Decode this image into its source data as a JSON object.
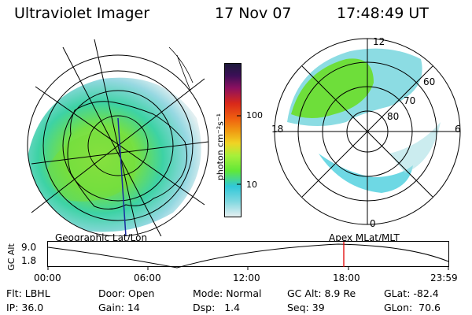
{
  "header": {
    "instrument": "Ultraviolet Imager",
    "date": "17 Nov 07",
    "time": "17:48:49 UT"
  },
  "colorbar": {
    "unit": "photon cm⁻²s⁻¹",
    "ticks": [
      "100",
      "10"
    ],
    "colors": [
      "#1b1a3a",
      "#3c0f57",
      "#6c0f7b",
      "#8b1060",
      "#b01030",
      "#d8281a",
      "#f06010",
      "#f09a12",
      "#f0d424",
      "#dff050",
      "#a8f03a",
      "#60e838",
      "#20d8a0",
      "#30c8d8",
      "#80d8e0",
      "#c8e6ea",
      "#e8f0f2"
    ]
  },
  "left_map": {
    "label": "Geographic Lat/Lon"
  },
  "right_map": {
    "label": "Apex MLat/MLT",
    "mlt_labels": [
      "12",
      "18",
      "6",
      "0"
    ],
    "mlat_labels": [
      "60",
      "70",
      "80"
    ]
  },
  "altitude_plot": {
    "ylabel": "GC Alt",
    "yticks": [
      "9.0",
      "1.8"
    ],
    "xticks": [
      "00:00",
      "06:00",
      "12:00",
      "18:00",
      "23:59"
    ],
    "marker_color": "#e00000"
  },
  "info": {
    "row1": {
      "filter": "Flt: LBHL",
      "door": "Door: Open",
      "mode": "Mode: Normal",
      "gcalt": "GC Alt: 8.9 Re",
      "glat": "GLat: -82.4"
    },
    "row2": {
      "ip": "IP: 36.0",
      "gain": "Gain: 14",
      "dsp": "Dsp:   1.4",
      "seq": "Seq: 39",
      "glon": "GLon:  70.6"
    }
  }
}
